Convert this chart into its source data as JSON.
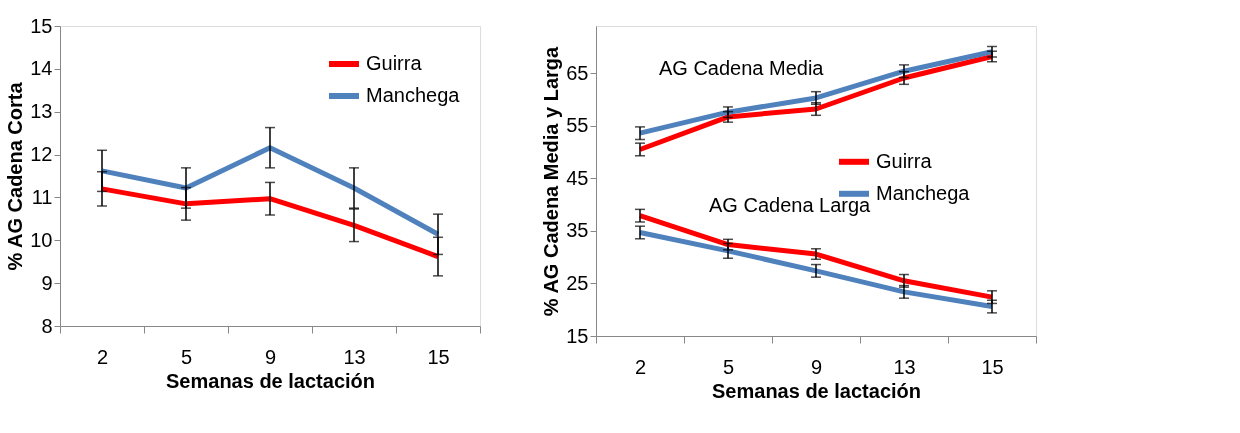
{
  "chart_data": [
    {
      "type": "line",
      "xlabel": "Semanas  de lactación",
      "ylabel": "% AG Cadena Corta",
      "categories": [
        "2",
        "5",
        "9",
        "13",
        "15"
      ],
      "ylim": [
        8,
        15
      ],
      "yticks": [
        8,
        9,
        10,
        11,
        12,
        13,
        14,
        15
      ],
      "legend": "top right",
      "grid": false,
      "series": [
        {
          "name": "Guirra",
          "color": "#ff0000",
          "values": [
            11.2,
            10.85,
            10.97,
            10.35,
            9.62
          ],
          "errors": [
            0.4,
            0.38,
            0.38,
            0.38,
            0.45
          ]
        },
        {
          "name": "Manchega",
          "color": "#4f81bd",
          "values": [
            11.62,
            11.22,
            12.16,
            11.22,
            10.14
          ],
          "errors": [
            0.48,
            0.47,
            0.47,
            0.47,
            0.47
          ]
        }
      ]
    },
    {
      "type": "line",
      "xlabel": "Semanas de lactación",
      "ylabel": "% AG Cadena Media y Larga",
      "categories": [
        "2",
        "5",
        "9",
        "13",
        "15"
      ],
      "ylim": [
        15,
        74
      ],
      "yticks": [
        15,
        25,
        35,
        45,
        55,
        65
      ],
      "legend": "right",
      "grid": false,
      "annotations": [
        "AG Cadena Media",
        "AG Cadena Larga"
      ],
      "series": [
        {
          "name": "Guirra",
          "color": "#ff0000",
          "values": [
            50.5,
            56.7,
            58.2,
            64.1,
            68.2
          ],
          "errors": [
            1.2,
            1.0,
            1.2,
            1.2,
            1.0
          ]
        },
        {
          "name": "Manchega",
          "color": "#4f81bd",
          "values": [
            53.6,
            57.6,
            60.3,
            65.4,
            69.1
          ],
          "errors": [
            1.2,
            1.0,
            1.2,
            1.2,
            1.0
          ]
        },
        {
          "name": "Guirra",
          "color": "#ff0000",
          "values": [
            37.9,
            32.4,
            30.6,
            25.5,
            22.4
          ],
          "errors": [
            1.2,
            1.0,
            1.0,
            1.2,
            1.2
          ]
        },
        {
          "name": "Manchega",
          "color": "#4f81bd",
          "values": [
            34.7,
            31.2,
            27.4,
            23.4,
            20.6
          ],
          "errors": [
            1.2,
            1.4,
            1.2,
            1.2,
            1.2
          ]
        }
      ]
    }
  ]
}
